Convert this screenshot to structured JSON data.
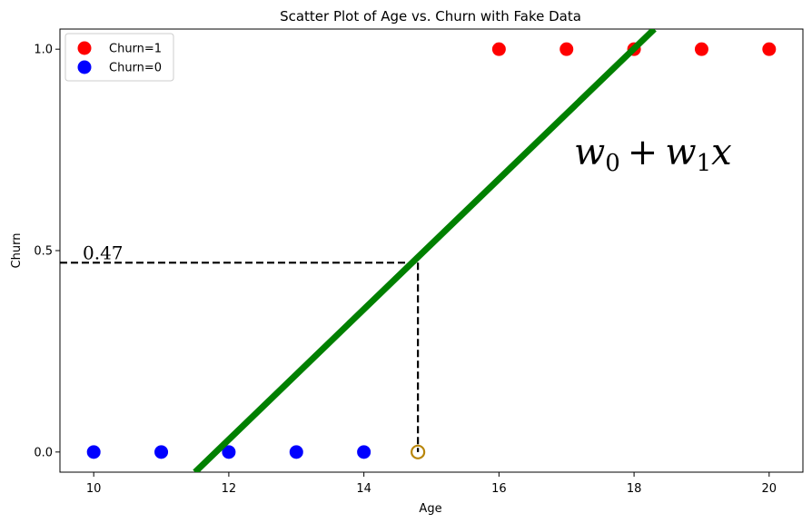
{
  "chart_data": {
    "type": "scatter",
    "title": "Scatter Plot of Age vs. Churn with Fake Data",
    "xlabel": "Age",
    "ylabel": "Churn",
    "xlim": [
      9.5,
      20.5
    ],
    "ylim": [
      -0.05,
      1.05
    ],
    "xticks": [
      10,
      12,
      14,
      16,
      18,
      20
    ],
    "xtick_labels": [
      "10",
      "12",
      "14",
      "16",
      "18",
      "20"
    ],
    "yticks": [
      0.0,
      0.5,
      1.0
    ],
    "ytick_labels": [
      "0.0",
      "0.5",
      "1.0"
    ],
    "grid": false,
    "legend_position": "upper-left",
    "series": [
      {
        "name": "Churn=1",
        "color": "#ff0000",
        "points": [
          {
            "x": 16,
            "y": 1
          },
          {
            "x": 17,
            "y": 1
          },
          {
            "x": 18,
            "y": 1
          },
          {
            "x": 19,
            "y": 1
          },
          {
            "x": 20,
            "y": 1
          }
        ]
      },
      {
        "name": "Churn=0",
        "color": "#0000ff",
        "points": [
          {
            "x": 10,
            "y": 0
          },
          {
            "x": 11,
            "y": 0
          },
          {
            "x": 12,
            "y": 0
          },
          {
            "x": 13,
            "y": 0
          },
          {
            "x": 14,
            "y": 0
          }
        ]
      }
    ],
    "line": {
      "color": "#008000",
      "points": [
        {
          "x": 11.5,
          "y": -0.05
        },
        {
          "x": 18.3,
          "y": 1.05
        }
      ]
    },
    "highlight_point": {
      "x": 14.8,
      "y": 0,
      "color": "#b8860b"
    },
    "reference_value": {
      "x": 14.8,
      "y": 0.47
    },
    "annotations": {
      "value_label": "0.47",
      "equation": {
        "w": "w",
        "sub0": "0",
        "plus": "+",
        "sub1": "1",
        "x": "x"
      }
    }
  }
}
